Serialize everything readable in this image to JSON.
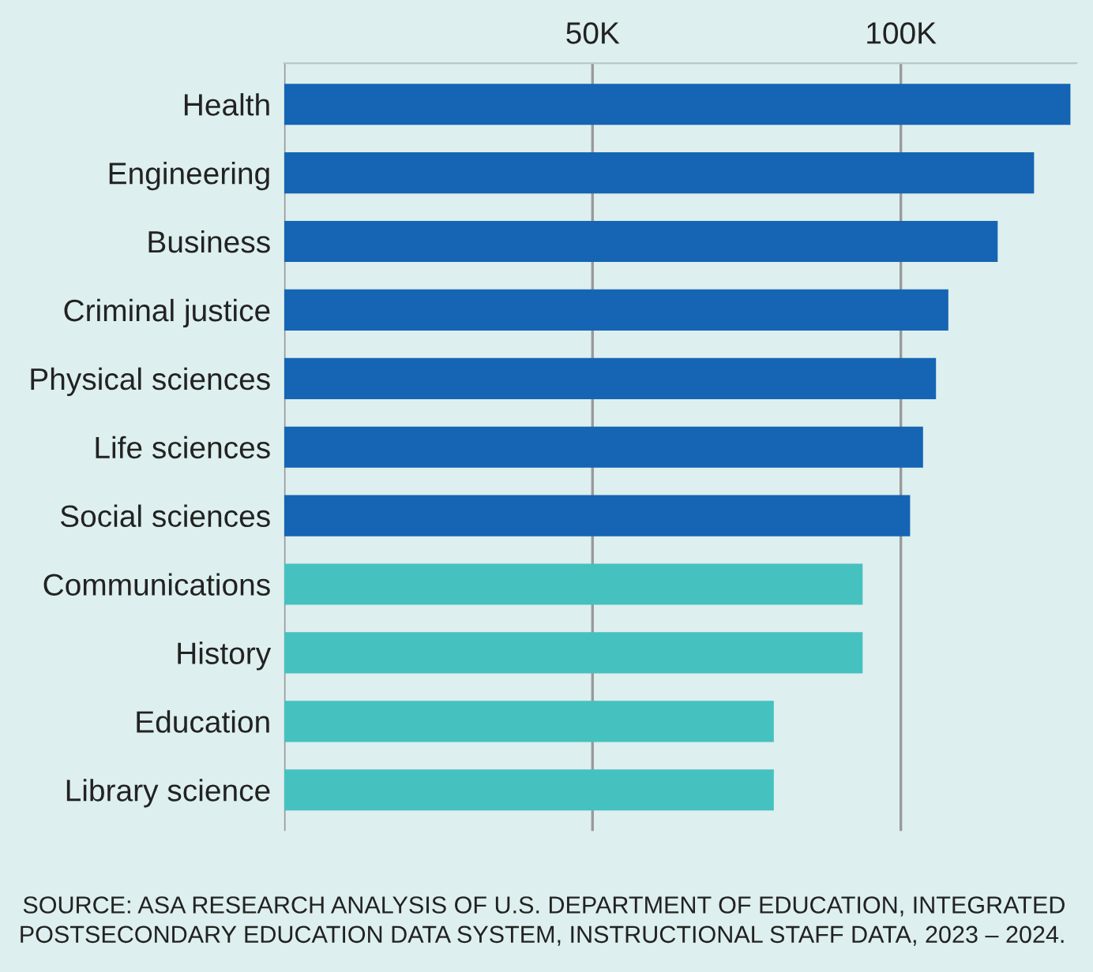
{
  "chart_data": {
    "type": "bar",
    "orientation": "horizontal",
    "categories": [
      "Health",
      "Engineering",
      "Business",
      "Criminal justice",
      "Physical sciences",
      "Life sciences",
      "Social sciences",
      "Communications",
      "History",
      "Education",
      "Library science"
    ],
    "values": [
      127.5,
      121.6,
      115.7,
      107.7,
      105.7,
      103.6,
      101.5,
      93.8,
      93.8,
      79.4,
      79.4
    ],
    "colors": [
      "#1565b4",
      "#1565b4",
      "#1565b4",
      "#1565b4",
      "#1565b4",
      "#1565b4",
      "#1565b4",
      "#45c1c0",
      "#45c1c0",
      "#45c1c0",
      "#45c1c0"
    ],
    "xticks": [
      {
        "value": 0,
        "label": null
      },
      {
        "value": 50,
        "label": "50K"
      },
      {
        "value": 100,
        "label": "100K"
      }
    ],
    "xlim": [
      0,
      128.5
    ],
    "grid": "x",
    "annotations": [
      "SOURCE: ASA RESEARCH ANALYSIS OF U.S. DEPARTMENT OF EDUCATION, INTEGRATED\nPOSTSECONDARY EDUCATION DATA SYSTEM, INSTRUCTIONAL STAFF DATA, 2023 – 2024."
    ]
  }
}
